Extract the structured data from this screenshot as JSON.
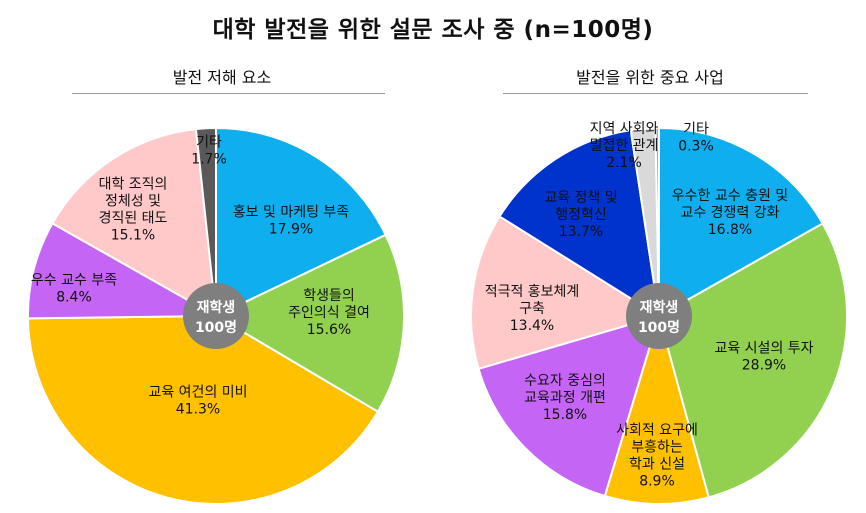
{
  "title": "대학 발전을 위한 설문 조사 중 (n=100명)",
  "chart_data": [
    {
      "type": "pie",
      "title": "발전 저해 요소",
      "center_label": [
        "재학생",
        "100명"
      ],
      "slices": [
        {
          "label": [
            "홍보 및 마케팅 부족"
          ],
          "value": 17.9,
          "display": "17.9%",
          "color": "#0eaeef"
        },
        {
          "label": [
            "학생들의",
            "주인의식 결여"
          ],
          "value": 15.6,
          "display": "15.6%",
          "color": "#92d050"
        },
        {
          "label": [
            "교육 여건의 미비"
          ],
          "value": 41.3,
          "display": "41.3%",
          "color": "#ffc000"
        },
        {
          "label": [
            "우수 교수 부족"
          ],
          "value": 8.4,
          "display": "8.4%",
          "color": "#c565f5"
        },
        {
          "label": [
            "대학 조직의",
            "정체성 및",
            "경직된 태도"
          ],
          "value": 15.1,
          "display": "15.1%",
          "color": "#ffc9c9"
        },
        {
          "label": [
            "기타"
          ],
          "value": 1.7,
          "display": "1.7%",
          "color": "#595959"
        }
      ]
    },
    {
      "type": "pie",
      "title": "발전을 위한 중요 사업",
      "center_label": [
        "재학생",
        "100명"
      ],
      "slices": [
        {
          "label": [
            "우수한 교수 충원 및",
            "교수 경쟁력 강화"
          ],
          "value": 16.8,
          "display": "16.8%",
          "color": "#0eaeef"
        },
        {
          "label": [
            "교육 시설의 투자"
          ],
          "value": 28.9,
          "display": "28.9%",
          "color": "#92d050"
        },
        {
          "label": [
            "사회적 요구에",
            "부흥하는",
            "학과 신설"
          ],
          "value": 8.9,
          "display": "8.9%",
          "color": "#ffc000"
        },
        {
          "label": [
            "수요자 중심의",
            "교육과정 개편"
          ],
          "value": 15.8,
          "display": "15.8%",
          "color": "#c565f5"
        },
        {
          "label": [
            "적극적 홍보체계",
            "구축"
          ],
          "value": 13.4,
          "display": "13.4%",
          "color": "#ffc9c9"
        },
        {
          "label": [
            "교육 정책 및",
            "행정혁신"
          ],
          "value": 13.7,
          "display": "13.7%",
          "color": "#0033cc"
        },
        {
          "label": [
            "지역 사회와",
            "밀접한 관계"
          ],
          "value": 2.1,
          "display": "2.1%",
          "color": "#d9d9d9"
        },
        {
          "label": [
            "기타"
          ],
          "value": 0.3,
          "display": "0.3%",
          "color": "#a6a6a6"
        }
      ]
    }
  ]
}
